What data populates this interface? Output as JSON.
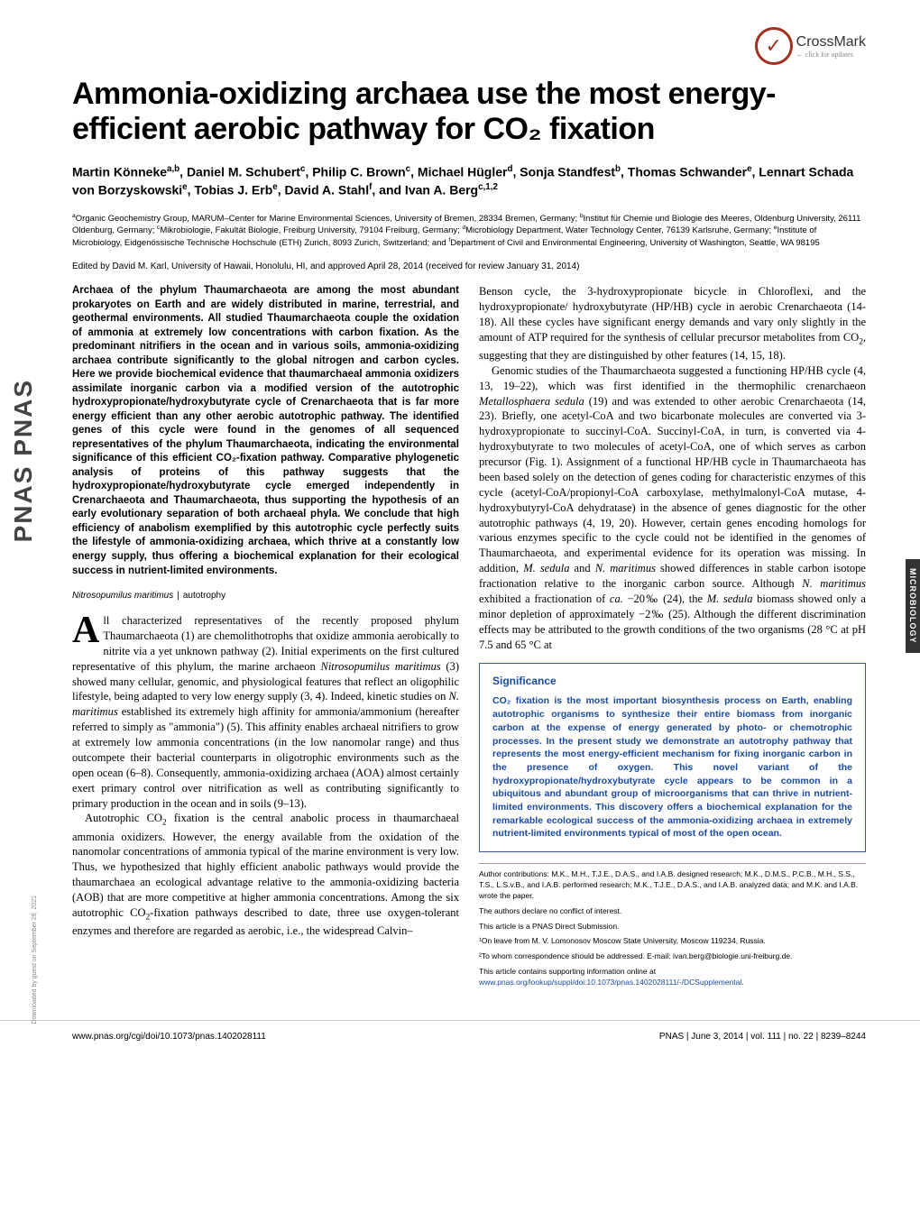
{
  "crossmark": {
    "label": "CrossMark",
    "sub": "← click for updates"
  },
  "side_logo": "PNAS PNAS",
  "side_tab": "MICROBIOLOGY",
  "download_note": "Downloaded by guest on September 29, 2021",
  "title": "Ammonia-oxidizing archaea use the most energy-efficient aerobic pathway for CO₂ fixation",
  "authors": "Martin Könneke^{a,b}, Daniel M. Schubert^{c}, Philip C. Brown^{c}, Michael Hügler^{d}, Sonja Standfest^{b}, Thomas Schwander^{e}, Lennart Schada von Borzyskowski^{e}, Tobias J. Erb^{e}, David A. Stahl^{f}, and Ivan A. Berg^{c,1,2}",
  "affiliations": "^{a}Organic Geochemistry Group, MARUM–Center for Marine Environmental Sciences, University of Bremen, 28334 Bremen, Germany; ^{b}Institut für Chemie und Biologie des Meeres, Oldenburg University, 26111 Oldenburg, Germany; ^{c}Mikrobiologie, Fakultät Biologie, Freiburg University, 79104 Freiburg, Germany; ^{d}Microbiology Department, Water Technology Center, 76139 Karlsruhe, Germany; ^{e}Institute of Microbiology, Eidgenössische Technische Hochschule (ETH) Zurich, 8093 Zurich, Switzerland; and ^{f}Department of Civil and Environmental Engineering, University of Washington, Seattle, WA 98195",
  "edited": "Edited by David M. Karl, University of Hawaii, Honolulu, HI, and approved April 28, 2014 (received for review January 31, 2014)",
  "abstract": "Archaea of the phylum Thaumarchaeota are among the most abundant prokaryotes on Earth and are widely distributed in marine, terrestrial, and geothermal environments. All studied Thaumarchaeota couple the oxidation of ammonia at extremely low concentrations with carbon fixation. As the predominant nitrifiers in the ocean and in various soils, ammonia-oxidizing archaea contribute significantly to the global nitrogen and carbon cycles. Here we provide biochemical evidence that thaumarchaeal ammonia oxidizers assimilate inorganic carbon via a modified version of the autotrophic hydroxypropionate/hydroxybutyrate cycle of Crenarchaeota that is far more energy efficient than any other aerobic autotrophic pathway. The identified genes of this cycle were found in the genomes of all sequenced representatives of the phylum Thaumarchaeota, indicating the environmental significance of this efficient CO₂-fixation pathway. Comparative phylogenetic analysis of proteins of this pathway suggests that the hydroxypropionate/hydroxybutyrate cycle emerged independently in Crenarchaeota and Thaumarchaeota, thus supporting the hypothesis of an early evolutionary separation of both archaeal phyla. We conclude that high efficiency of anabolism exemplified by this autotrophic cycle perfectly suits the lifestyle of ammonia-oxidizing archaea, which thrive at a constantly low energy supply, thus offering a biochemical explanation for their ecological success in nutrient-limited environments.",
  "keywords": {
    "k1": "Nitrosopumilus maritimus",
    "k2": "autotrophy"
  },
  "body": {
    "p1_first": "A",
    "p1_rest": "ll characterized representatives of the recently proposed phylum Thaumarchaeota (1) are chemolithotrophs that oxidize ammonia aerobically to nitrite via a yet unknown pathway (2). Initial experiments on the first cultured representative of this phylum, the marine archaeon Nitrosopumilus maritimus (3) showed many cellular, genomic, and physiological features that reflect an oligophilic lifestyle, being adapted to very low energy supply (3, 4). Indeed, kinetic studies on N. maritimus established its extremely high affinity for ammonia/ammonium (hereafter referred to simply as \"ammonia\") (5). This affinity enables archaeal nitrifiers to grow at extremely low ammonia concentrations (in the low nanomolar range) and thus outcompete their bacterial counterparts in oligotrophic environments such as the open ocean (6–8). Consequently, ammonia-oxidizing archaea (AOA) almost certainly exert primary control over nitrification as well as contributing significantly to primary production in the ocean and in soils (9–13).",
    "p2": "Autotrophic CO₂ fixation is the central anabolic process in thaumarchaeal ammonia oxidizers. However, the energy available from the oxidation of the nanomolar concentrations of ammonia typical of the marine environment is very low. Thus, we hypothesized that highly efficient anabolic pathways would provide the thaumarchaea an ecological advantage relative to the ammonia-oxidizing bacteria (AOB) that are more competitive at higher ammonia concentrations. Among the six autotrophic CO₂-fixation pathways described to date, three use oxygen-tolerant enzymes and therefore are regarded as aerobic, i.e., the widespread Calvin–",
    "p3": "Benson cycle, the 3-hydroxypropionate bicycle in Chloroflexi, and the hydroxypropionate/ hydroxybutyrate (HP/HB) cycle in aerobic Crenarchaeota (14-18). All these cycles have significant energy demands and vary only slightly in the amount of ATP required for the synthesis of cellular precursor metabolites from CO₂, suggesting that they are distinguished by other features (14, 15, 18).",
    "p4": "Genomic studies of the Thaumarchaeota suggested a functioning HP/HB cycle (4, 13, 19–22), which was first identified in the thermophilic crenarchaeon Metallosphaera sedula (19) and was extended to other aerobic Crenarchaeota (14, 23). Briefly, one acetyl-CoA and two bicarbonate molecules are converted via 3-hydroxypropionate to succinyl-CoA. Succinyl-CoA, in turn, is converted via 4-hydroxybutyrate to two molecules of acetyl-CoA, one of which serves as carbon precursor (Fig. 1). Assignment of a functional HP/HB cycle in Thaumarchaeota has been based solely on the detection of genes coding for characteristic enzymes of this cycle (acetyl-CoA/propionyl-CoA carboxylase, methylmalonyl-CoA mutase, 4-hydroxybutyryl-CoA dehydratase) in the absence of genes diagnostic for the other autotrophic pathways (4, 19, 20). However, certain genes encoding homologs for various enzymes specific to the cycle could not be identified in the genomes of Thaumarchaeota, and experimental evidence for its operation was missing. In addition, M. sedula and N. maritimus showed differences in stable carbon isotope fractionation relative to the inorganic carbon source. Although N. maritimus exhibited a fractionation of ca. −20‰ (24), the M. sedula biomass showed only a minor depletion of approximately −2‰ (25). Although the different discrimination effects may be attributed to the growth conditions of the two organisms (28 °C at pH 7.5 and 65 °C at"
  },
  "significance": {
    "title": "Significance",
    "text": "CO₂ fixation is the most important biosynthesis process on Earth, enabling autotrophic organisms to synthesize their entire biomass from inorganic carbon at the expense of energy generated by photo- or chemotrophic processes. In the present study we demonstrate an autotrophy pathway that represents the most energy-efficient mechanism for fixing inorganic carbon in the presence of oxygen. This novel variant of the hydroxypropionate/hydroxybutyrate cycle appears to be common in a ubiquitous and abundant group of microorganisms that can thrive in nutrient-limited environments. This discovery offers a biochemical explanation for the remarkable ecological success of the ammonia-oxidizing archaea in extremely nutrient-limited environments typical of most of the open ocean."
  },
  "footnotes": {
    "contributions": "Author contributions: M.K., M.H., T.J.E., D.A.S., and I.A.B. designed research; M.K., D.M.S., P.C.B., M.H., S.S., T.S., L.S.v.B., and I.A.B. performed research; M.K., T.J.E., D.A.S., and I.A.B. analyzed data; and M.K. and I.A.B. wrote the paper.",
    "conflict": "The authors declare no conflict of interest.",
    "submission": "This article is a PNAS Direct Submission.",
    "note1": "¹On leave from M. V. Lomonosov Moscow State University, Moscow 119234, Russia.",
    "note2": "²To whom correspondence should be addressed. E-mail: ivan.berg@biologie.uni-freiburg.de.",
    "supplemental": "This article contains supporting information online at www.pnas.org/lookup/suppl/doi:10.1073/pnas.1402028111/-/DCSupplemental."
  },
  "footer": {
    "doi": "www.pnas.org/cgi/doi/10.1073/pnas.1402028111",
    "citation": "PNAS | June 3, 2014 | vol. 111 | no. 22 | 8239–8244"
  },
  "colors": {
    "brand_red": "#a03020",
    "sig_blue": "#1a4ba0",
    "sig_border": "#3b5998"
  },
  "typography": {
    "title_pt": 34,
    "authors_pt": 14,
    "affil_pt": 9.5,
    "abstract_pt": 11.5,
    "body_pt": 12.5,
    "sig_pt": 10.5,
    "footnote_pt": 8.5
  }
}
